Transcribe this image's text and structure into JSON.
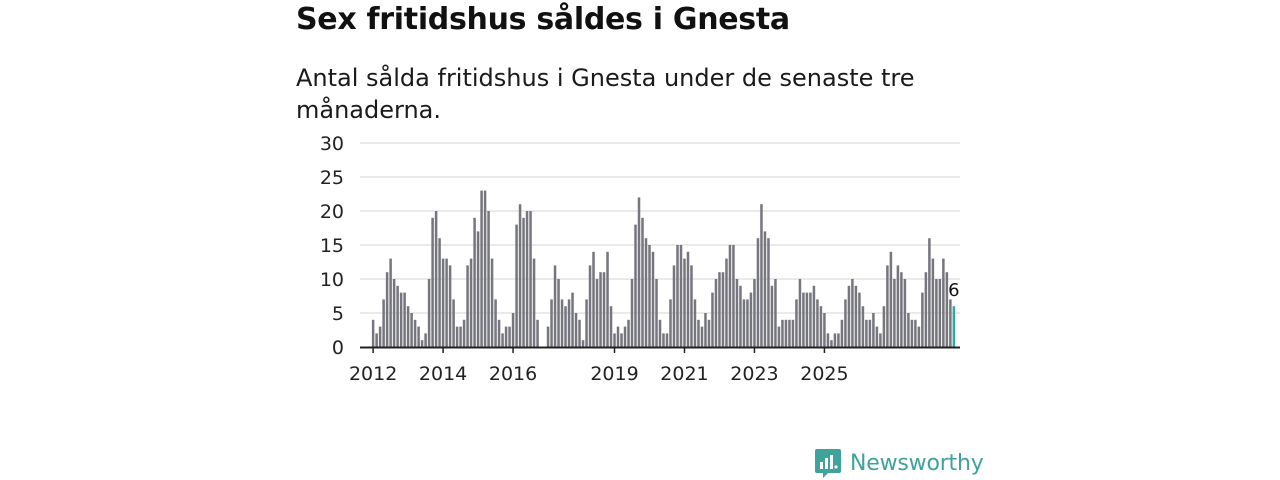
{
  "header": {
    "title": "Sex fritidshus såldes i Gnesta",
    "subtitle": "Antal sålda fritidshus i Gnesta under de senaste tre månaderna."
  },
  "brand": {
    "name": "Newsworthy",
    "color": "#3fa39b"
  },
  "colors": {
    "bar": "#76767e",
    "highlight": "#2fa9a0",
    "grid": "#dddddd",
    "axis": "#222222"
  },
  "chart_data": {
    "type": "bar",
    "title": "Sex fritidshus såldes i Gnesta",
    "subtitle": "Antal sålda fritidshus i Gnesta under de senaste tre månaderna.",
    "xlabel": "",
    "ylabel": "",
    "ylim": [
      0,
      30
    ],
    "yticks": [
      0,
      5,
      10,
      15,
      20,
      25,
      30
    ],
    "xticks": [
      "2012",
      "2014",
      "2016",
      "2019",
      "2021",
      "2023",
      "2025"
    ],
    "xtick_positions": [
      3,
      23,
      43,
      72,
      92,
      112,
      132
    ],
    "start": "2011-10",
    "end": "2025-10",
    "grid": true,
    "values": [
      0,
      0,
      0,
      4,
      2,
      3,
      7,
      11,
      13,
      10,
      9,
      8,
      8,
      6,
      5,
      4,
      3,
      1,
      2,
      10,
      19,
      20,
      16,
      13,
      13,
      12,
      7,
      3,
      3,
      4,
      12,
      13,
      19,
      17,
      23,
      23,
      20,
      13,
      7,
      4,
      2,
      3,
      3,
      5,
      18,
      21,
      19,
      20,
      20,
      13,
      4,
      0,
      0,
      3,
      7,
      12,
      10,
      7,
      6,
      7,
      8,
      5,
      4,
      1,
      7,
      12,
      14,
      10,
      11,
      11,
      14,
      6,
      2,
      3,
      2,
      3,
      4,
      10,
      18,
      22,
      19,
      16,
      15,
      14,
      10,
      4,
      2,
      2,
      7,
      12,
      15,
      15,
      13,
      14,
      12,
      7,
      4,
      3,
      5,
      4,
      8,
      10,
      11,
      11,
      13,
      15,
      15,
      10,
      9,
      7,
      7,
      8,
      10,
      16,
      21,
      17,
      16,
      9,
      10,
      3,
      4,
      4,
      4,
      4,
      7,
      10,
      8,
      8,
      8,
      9,
      7,
      6,
      5,
      2,
      1,
      2,
      2,
      4,
      7,
      9,
      10,
      9,
      8,
      6,
      4,
      4,
      5,
      3,
      2,
      6,
      12,
      14,
      10,
      12,
      11,
      10,
      5,
      4,
      4,
      3,
      8,
      11,
      16,
      13,
      10,
      10,
      13,
      11,
      7,
      6
    ],
    "highlight_last": true,
    "last_value_label": "6"
  }
}
